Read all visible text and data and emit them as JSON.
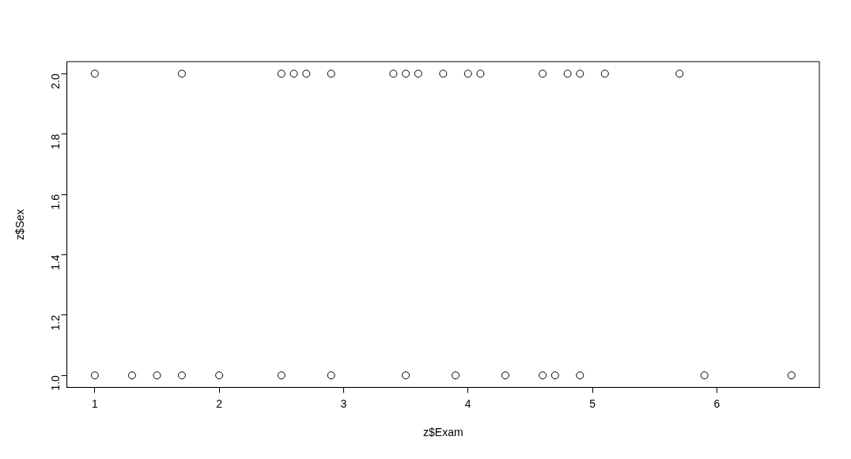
{
  "chart_data": {
    "type": "scatter",
    "xlabel": "z$Exam",
    "ylabel": "z$Sex",
    "x": [
      1.0,
      1.7,
      2.5,
      2.6,
      2.7,
      2.9,
      3.4,
      3.5,
      3.6,
      3.8,
      4.0,
      4.1,
      4.6,
      4.8,
      4.9,
      5.1,
      5.7,
      1.0,
      1.3,
      1.5,
      1.7,
      2.0,
      2.5,
      2.9,
      3.5,
      3.9,
      4.3,
      4.6,
      4.7,
      4.9,
      5.9,
      6.6
    ],
    "values": [
      2,
      2,
      2,
      2,
      2,
      2,
      2,
      2,
      2,
      2,
      2,
      2,
      2,
      2,
      2,
      2,
      2,
      1,
      1,
      1,
      1,
      1,
      1,
      1,
      1,
      1,
      1,
      1,
      1,
      1,
      1,
      1
    ],
    "color": "#000000",
    "marker": "circle",
    "grid": false,
    "legend": false,
    "xlim": [
      0.776,
      6.824
    ],
    "ylim": [
      0.96,
      2.04
    ],
    "xticks": [
      1,
      2,
      3,
      4,
      5,
      6
    ],
    "yticks": [
      {
        "value": 1,
        "label": "1.0"
      },
      {
        "value": 1.2,
        "label": "1.2"
      },
      {
        "value": 1.4,
        "label": "1.4"
      },
      {
        "value": 1.6,
        "label": "1.6"
      },
      {
        "value": 1.8,
        "label": "1.8"
      },
      {
        "value": 2,
        "label": "2.0"
      }
    ]
  }
}
